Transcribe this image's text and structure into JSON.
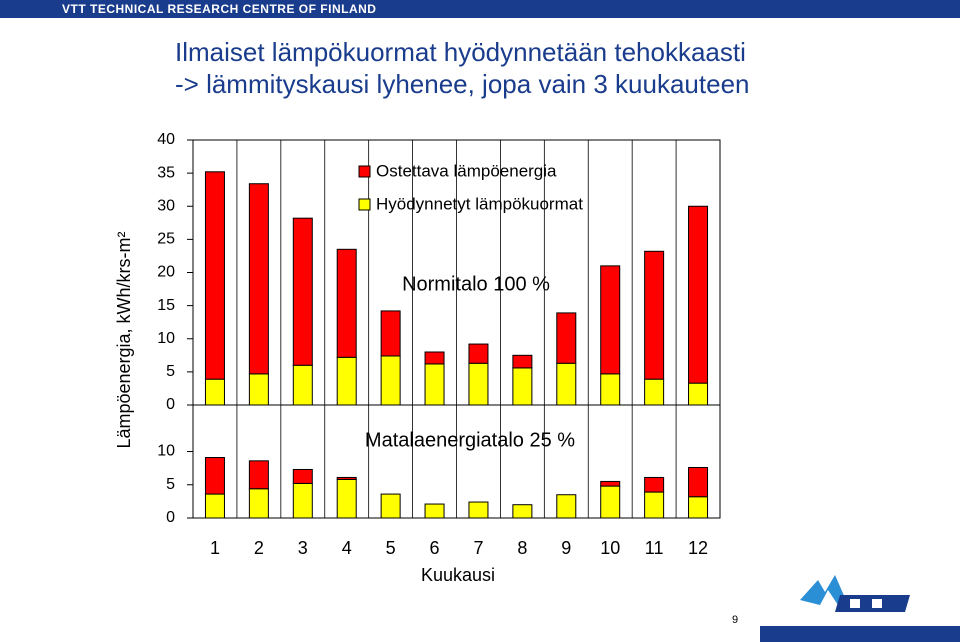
{
  "header": {
    "org": "VTT TECHNICAL RESEARCH CENTRE OF FINLAND"
  },
  "slide": {
    "title_lines": [
      "Ilmaiset lämpökuormat hyödynnetään tehokkaasti",
      "-> lämmityskausi lyhenee, jopa vain 3 kuukauteen"
    ],
    "page_number": "9"
  },
  "chart_data": [
    {
      "type": "bar",
      "stacked": true,
      "ylabel": "Lämpöenergia, kWh/krs-m²",
      "annotation": "Normitalo 100 %",
      "ylim": [
        0,
        40
      ],
      "yticks": [
        0,
        5,
        10,
        15,
        20,
        25,
        30,
        35,
        40
      ],
      "series": [
        {
          "name": "Ostettava lämpöenergia",
          "color": "#ff0000",
          "values": [
            31.3,
            28.7,
            22.2,
            16.3,
            6.8,
            1.8,
            2.9,
            1.9,
            7.6,
            16.3,
            19.3,
            26.7
          ]
        },
        {
          "name": "Hyödynnetyt lämpökuormat",
          "color": "#ffff00",
          "values": [
            3.9,
            4.7,
            6.0,
            7.2,
            7.4,
            6.2,
            6.3,
            5.6,
            6.3,
            4.7,
            3.9,
            3.3
          ]
        }
      ]
    },
    {
      "type": "bar",
      "stacked": true,
      "annotation": "Matalaenergiatalo 25 %",
      "xlabel": "Kuukausi",
      "categories": [
        "1",
        "2",
        "3",
        "4",
        "5",
        "6",
        "7",
        "8",
        "9",
        "10",
        "11",
        "12"
      ],
      "ylim": [
        0,
        17
      ],
      "yticks": [
        0,
        5,
        10
      ],
      "series": [
        {
          "color": "#ff0000",
          "values": [
            5.5,
            4.2,
            2.1,
            0.3,
            0,
            0,
            0,
            0,
            0,
            0.7,
            2.2,
            4.4
          ]
        },
        {
          "color": "#ffff00",
          "values": [
            3.6,
            4.4,
            5.2,
            5.8,
            3.6,
            2.1,
            2.4,
            2.0,
            3.5,
            4.8,
            3.9,
            3.2
          ]
        }
      ]
    }
  ]
}
